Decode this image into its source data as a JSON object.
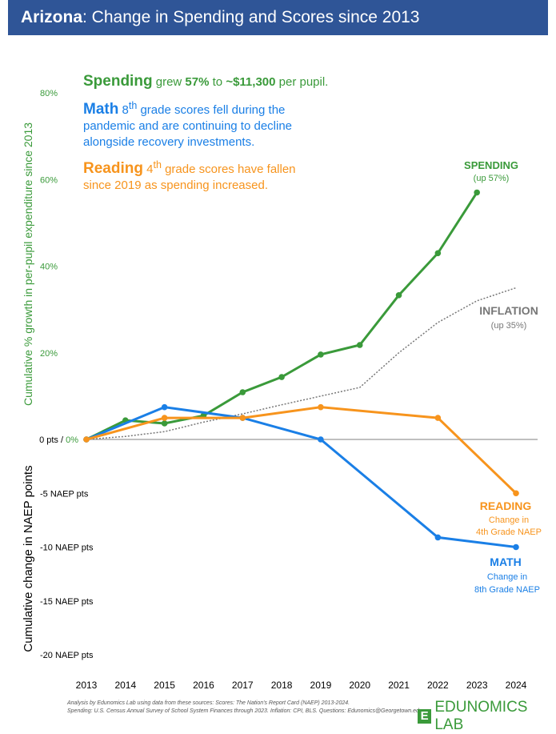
{
  "header": {
    "title_bold": "Arizona",
    "title_rest": ": Change in Spending and Scores since 2013"
  },
  "annotations": {
    "spending": {
      "label": "Spending",
      "text_a": " grew ",
      "pct": "57%",
      "text_b": " to ",
      "amount": "~$11,300",
      "text_c": " per pupil."
    },
    "math": {
      "label": "Math",
      "grade": "8",
      "sup": "th",
      "text": " grade scores fell during the pandemic and are continuing to decline alongside recovery investments."
    },
    "reading": {
      "label": "Reading",
      "grade": "4",
      "sup": "th",
      "text": " grade scores have fallen since 2019 as spending increased."
    }
  },
  "series_labels": {
    "spending": {
      "title": "SPENDING",
      "sub": "(up 57%)"
    },
    "inflation": {
      "title": "INFLATION",
      "sub": "(up 35%)"
    },
    "reading": {
      "title": "READING",
      "sub1": "Change in",
      "sub2": "4th Grade NAEP"
    },
    "math": {
      "title": "MATH",
      "sub1": "Change in",
      "sub2": "8th Grade NAEP"
    }
  },
  "footer": {
    "line1": "Analysis by Edunomics Lab using data from these sources: Scores: The Nation's Report Card (NAEP) 2013-2024.",
    "line2": "Spending: U.S. Census Annual Survey of School System Finances through 2023. Inflation: CPI, BLS. Questions: Edunomics@Georgetown.edu",
    "logo": "EDUNOMICS LAB",
    "logo_mark": "E"
  },
  "colors": {
    "spending": "#3a9a3a",
    "inflation": "#777777",
    "reading": "#f7941d",
    "math": "#1a7fe6",
    "header": "#2f5597"
  },
  "chart_data": {
    "type": "line",
    "x": [
      2013,
      2014,
      2015,
      2016,
      2017,
      2018,
      2019,
      2020,
      2021,
      2022,
      2023,
      2024
    ],
    "ylabel_top": "Cumulative % growth in per-pupil expenditure since 2013",
    "ylabel_bottom": "Cumulative change in NAEP points",
    "pct_ticks": [
      "80%",
      "60%",
      "40%",
      "20%"
    ],
    "pct_tick_values": [
      80,
      60,
      40,
      20
    ],
    "zero_label_a": "0 pts / ",
    "zero_label_b": "0%",
    "naep_ticks": [
      "-5 NAEP pts",
      "-10 NAEP pts",
      "-15 NAEP pts",
      "-20 NAEP pts"
    ],
    "naep_tick_values": [
      -5,
      -10,
      -15,
      -20
    ],
    "ylim_pct": [
      0,
      80
    ],
    "ylim_naep": [
      -20,
      0
    ],
    "series": [
      {
        "name": "Spending",
        "unit": "%",
        "x": [
          2013,
          2014,
          2015,
          2016,
          2017,
          2018,
          2019,
          2020,
          2021,
          2022,
          2023
        ],
        "values": [
          0,
          4.4,
          3.7,
          5.5,
          10.9,
          14.4,
          19.6,
          21.8,
          33.3,
          43,
          57
        ],
        "style": "solid"
      },
      {
        "name": "Inflation",
        "unit": "%",
        "x": [
          2013,
          2014,
          2015,
          2016,
          2017,
          2018,
          2019,
          2020,
          2021,
          2022,
          2023,
          2024
        ],
        "values": [
          0,
          0.7,
          1.8,
          4,
          5.9,
          8,
          10,
          12,
          20,
          27,
          32,
          35
        ],
        "style": "dotted"
      },
      {
        "name": "Math",
        "unit": "NAEP pts",
        "x": [
          2013,
          2015,
          2017,
          2019,
          2022,
          2024
        ],
        "values": [
          0,
          3,
          2,
          0,
          -9.1,
          -10
        ],
        "style": "solid"
      },
      {
        "name": "Reading",
        "unit": "NAEP pts",
        "x": [
          2013,
          2015,
          2017,
          2019,
          2022,
          2024
        ],
        "values": [
          0,
          2,
          2,
          3,
          2,
          -5
        ],
        "style": "solid"
      }
    ]
  }
}
